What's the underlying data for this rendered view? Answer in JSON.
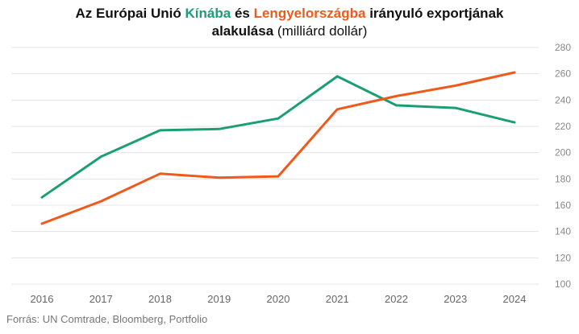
{
  "title": {
    "prefix": "Az Európai Unió",
    "china": "Kínába",
    "mid": "és",
    "poland": "Lengyelországba",
    "suffix": "irányuló exportjának",
    "line2_bold": "alakulása",
    "line2_unit": "(milliárd dollár)"
  },
  "source": "Forrás: UN Comtrade, Bloomberg, Portfolio",
  "colors": {
    "china": "#1a9e74",
    "poland": "#ef5a1c",
    "grid": "#e3e3e3",
    "axis_text": "#888888"
  },
  "chart_data": {
    "type": "line",
    "categories": [
      "2016",
      "2017",
      "2018",
      "2019",
      "2020",
      "2021",
      "2022",
      "2023",
      "2024"
    ],
    "series": [
      {
        "name": "Kínába",
        "color": "#1a9e74",
        "values": [
          166,
          197,
          217,
          218,
          226,
          258,
          236,
          234,
          223
        ]
      },
      {
        "name": "Lengyelországba",
        "color": "#ef5a1c",
        "values": [
          146,
          163,
          184,
          181,
          182,
          233,
          243,
          251,
          261
        ]
      }
    ],
    "ylim": [
      100,
      280
    ],
    "yticks": [
      100,
      120,
      140,
      160,
      180,
      200,
      220,
      240,
      260,
      280
    ],
    "grid": true,
    "y_axis_side": "right"
  }
}
